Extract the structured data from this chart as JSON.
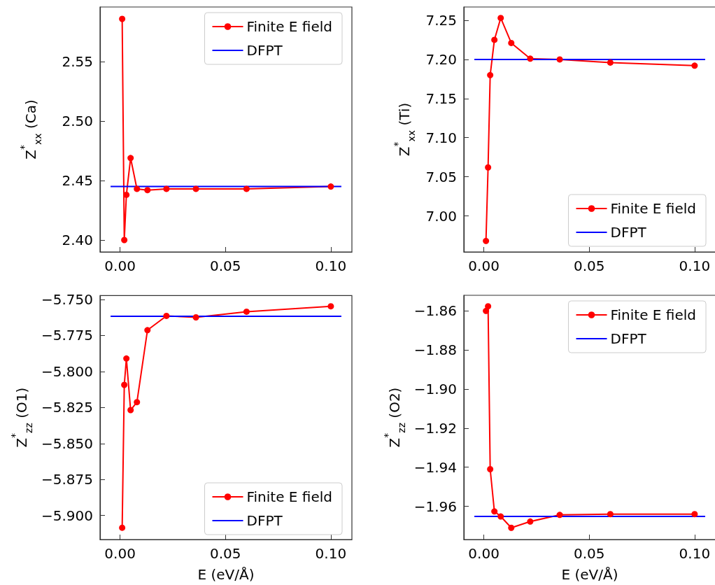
{
  "chart_data": [
    {
      "type": "line",
      "ylabel": "Z$^{*}$$_{xx}$ (Ca)",
      "legend": "top right",
      "grid": false,
      "xlim": [
        -0.0095,
        0.11
      ],
      "xticks": [
        {
          "value": 0,
          "label": "0.00"
        },
        {
          "value": 0.05,
          "label": "0.05"
        },
        {
          "value": 0.1,
          "label": "0.10"
        }
      ],
      "ylim": [
        2.39,
        2.596
      ],
      "yticks": [
        {
          "value": 2.4,
          "label": "2.40"
        },
        {
          "value": 2.45,
          "label": "2.45"
        },
        {
          "value": 2.5,
          "label": "2.50"
        },
        {
          "value": 2.55,
          "label": "2.55"
        }
      ],
      "series": [
        {
          "name": "Finite E field",
          "color": "#ff0000",
          "marker": "circle",
          "line_style": "solid",
          "x": [
            0.001,
            0.002,
            0.003,
            0.005,
            0.008,
            0.013,
            0.022,
            0.036,
            0.06,
            0.1
          ],
          "values": [
            2.586,
            2.4,
            2.438,
            2.469,
            2.443,
            2.442,
            2.443,
            2.443,
            2.443,
            2.445
          ]
        },
        {
          "name": "DFPT",
          "color": "#0000ff",
          "marker": "none",
          "line_style": "solid",
          "x": [
            -0.0045,
            0.105
          ],
          "values": [
            2.445,
            2.445
          ]
        }
      ]
    },
    {
      "type": "line",
      "ylabel": "Z$^{*}$$_{xx}$ (Ti)",
      "legend": "bottom right",
      "grid": false,
      "xlim": [
        -0.0095,
        0.11
      ],
      "xticks": [
        {
          "value": 0,
          "label": "0.00"
        },
        {
          "value": 0.05,
          "label": "0.05"
        },
        {
          "value": 0.1,
          "label": "0.10"
        }
      ],
      "ylim": [
        6.954,
        7.267
      ],
      "yticks": [
        {
          "value": 7,
          "label": "7.00"
        },
        {
          "value": 7.05,
          "label": "7.05"
        },
        {
          "value": 7.1,
          "label": "7.10"
        },
        {
          "value": 7.15,
          "label": "7.15"
        },
        {
          "value": 7.2,
          "label": "7.20"
        },
        {
          "value": 7.25,
          "label": "7.25"
        }
      ],
      "series": [
        {
          "name": "Finite E field",
          "color": "#ff0000",
          "marker": "circle",
          "line_style": "solid",
          "x": [
            0.001,
            0.002,
            0.003,
            0.005,
            0.008,
            0.013,
            0.022,
            0.036,
            0.06,
            0.1
          ],
          "values": [
            6.968,
            7.062,
            7.18,
            7.225,
            7.253,
            7.221,
            7.201,
            7.2,
            7.196,
            7.192
          ]
        },
        {
          "name": "DFPT",
          "color": "#0000ff",
          "marker": "none",
          "line_style": "solid",
          "x": [
            -0.0045,
            0.105
          ],
          "values": [
            7.2,
            7.2
          ]
        }
      ]
    },
    {
      "type": "line",
      "ylabel": "Z$^{*}$$_{zz}$ (O1)",
      "xlabel": "E (eV/Å)",
      "legend": "bottom right",
      "grid": false,
      "xlim": [
        -0.0095,
        0.11
      ],
      "xticks": [
        {
          "value": 0,
          "label": "0.00"
        },
        {
          "value": 0.05,
          "label": "0.05"
        },
        {
          "value": 0.1,
          "label": "0.10"
        }
      ],
      "ylim": [
        -5.9167,
        -5.7473
      ],
      "yticks": [
        {
          "value": -5.9,
          "label": "−5.900"
        },
        {
          "value": -5.875,
          "label": "−5.875"
        },
        {
          "value": -5.85,
          "label": "−5.850"
        },
        {
          "value": -5.825,
          "label": "−5.825"
        },
        {
          "value": -5.8,
          "label": "−5.800"
        },
        {
          "value": -5.775,
          "label": "−5.775"
        },
        {
          "value": -5.75,
          "label": "−5.750"
        }
      ],
      "series": [
        {
          "name": "Finite E field",
          "color": "#ff0000",
          "marker": "circle",
          "line_style": "solid",
          "x": [
            0.001,
            0.002,
            0.003,
            0.005,
            0.008,
            0.013,
            0.022,
            0.036,
            0.06,
            0.1
          ],
          "values": [
            -5.9085,
            -5.8093,
            -5.791,
            -5.8268,
            -5.8213,
            -5.7713,
            -5.7614,
            -5.7624,
            -5.7585,
            -5.7547
          ]
        },
        {
          "name": "DFPT",
          "color": "#0000ff",
          "marker": "none",
          "line_style": "solid",
          "x": [
            -0.0045,
            0.105
          ],
          "values": [
            -5.7617,
            -5.7617
          ]
        }
      ]
    },
    {
      "type": "line",
      "ylabel": "Z$^{*}$$_{zz}$ (O2)",
      "xlabel": "E (eV/Å)",
      "legend": "top right",
      "grid": false,
      "xlim": [
        -0.0095,
        0.11
      ],
      "xticks": [
        {
          "value": 0,
          "label": "0.00"
        },
        {
          "value": 0.05,
          "label": "0.05"
        },
        {
          "value": 0.1,
          "label": "0.10"
        }
      ],
      "ylim": [
        -1.977,
        -1.852
      ],
      "yticks": [
        {
          "value": -1.96,
          "label": "−1.96"
        },
        {
          "value": -1.94,
          "label": "−1.94"
        },
        {
          "value": -1.92,
          "label": "−1.92"
        },
        {
          "value": -1.9,
          "label": "−1.90"
        },
        {
          "value": -1.88,
          "label": "−1.88"
        },
        {
          "value": -1.86,
          "label": "−1.86"
        }
      ],
      "series": [
        {
          "name": "Finite E field",
          "color": "#ff0000",
          "marker": "circle",
          "line_style": "solid",
          "x": [
            0.001,
            0.002,
            0.003,
            0.005,
            0.008,
            0.013,
            0.022,
            0.036,
            0.06,
            0.1
          ],
          "values": [
            -1.86,
            -1.8576,
            -1.941,
            -1.9626,
            -1.9652,
            -1.971,
            -1.9678,
            -1.9644,
            -1.964,
            -1.964
          ]
        },
        {
          "name": "DFPT",
          "color": "#0000ff",
          "marker": "none",
          "line_style": "solid",
          "x": [
            -0.0045,
            0.105
          ],
          "values": [
            -1.9652,
            -1.9652
          ]
        }
      ]
    }
  ]
}
